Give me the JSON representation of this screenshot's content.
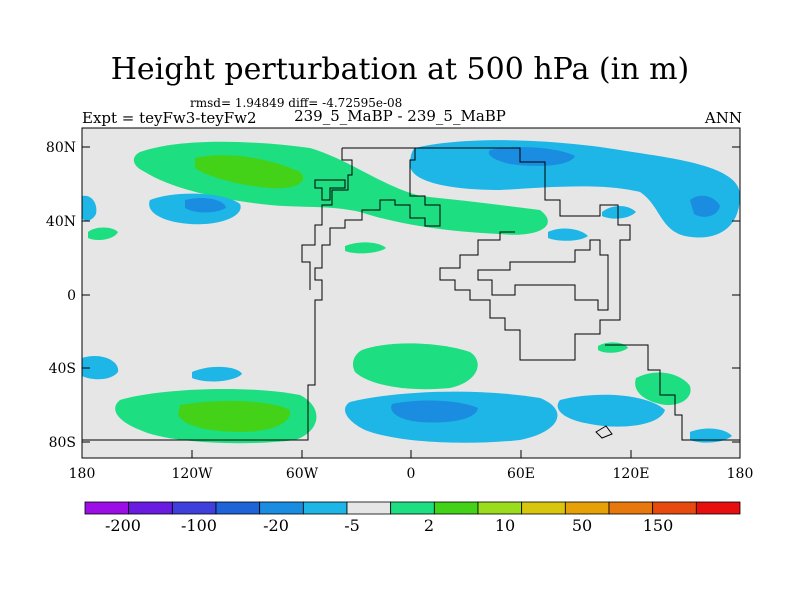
{
  "title": "Height perturbation at 500 hPa (in m)",
  "stats": "rmsd= 1.94849  diff= -4.72595e-08",
  "experiment": "Expt = teyFw3-teyFw2",
  "runs": "239_5_MaBP - 239_5_MaBP",
  "season": "ANN",
  "lat_labels": [
    "80N",
    "40N",
    "0",
    "40S",
    "80S"
  ],
  "lon_labels": [
    "180",
    "120W",
    "60W",
    "0",
    "60E",
    "120E",
    "180"
  ],
  "colorbar": {
    "labels": [
      "-200",
      "-100",
      "-20",
      "-5",
      "2",
      "10",
      "50",
      "150"
    ],
    "colors": [
      "#9b0fe6",
      "#6a1be0",
      "#3f3fdc",
      "#1e64d8",
      "#1a8de0",
      "#1eb6e6",
      "#e6e6e6",
      "#1ede82",
      "#44d218",
      "#9bdc1e",
      "#d8c60e",
      "#e6a008",
      "#e6780e",
      "#e64a0e",
      "#e60e0e"
    ]
  },
  "map_colors": {
    "background": "#e6e6e6",
    "positive_small": "#1ede82",
    "positive_mid": "#44d218",
    "negative_small": "#1eb6e6",
    "negative_mid": "#1a8de0",
    "coastline": "#000000"
  }
}
